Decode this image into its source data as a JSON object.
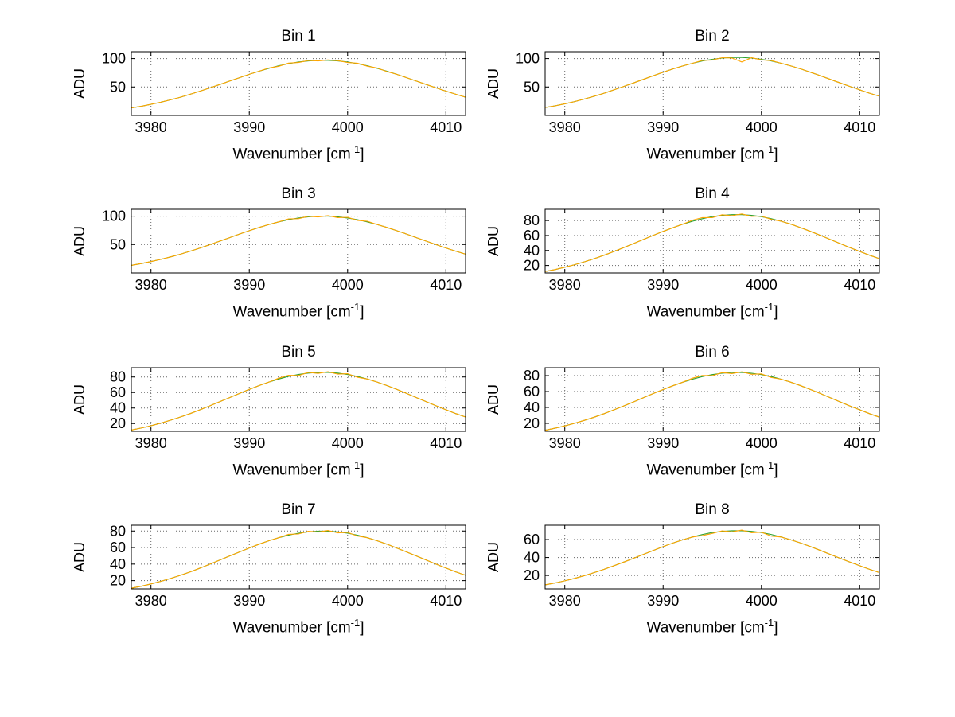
{
  "figure": {
    "background": "#ffffff"
  },
  "chart_common": {
    "type": "line",
    "xlabel_main": "Wavenumber [cm",
    "xlabel_sup": "-1",
    "xlabel_close": "]",
    "ylabel": "ADU",
    "xlim": [
      3978,
      4012
    ],
    "xticks": [
      3980,
      3990,
      4000,
      4010
    ],
    "grid": "dotted",
    "legend": "none",
    "colors": {
      "trace_primary": "#ffa500",
      "trace_secondary": "#2ca02c",
      "axis": "#000000",
      "grid": "#666666"
    },
    "x": [
      3978,
      3979,
      3980,
      3981,
      3982,
      3983,
      3984,
      3985,
      3986,
      3987,
      3988,
      3989,
      3990,
      3991,
      3992,
      3993,
      3994,
      3995,
      3996,
      3997,
      3998,
      3999,
      4000,
      4001,
      4002,
      4003,
      4004,
      4005,
      4006,
      4007,
      4008,
      4009,
      4010,
      4011,
      4012
    ]
  },
  "chart_data": [
    {
      "title": "Bin 1",
      "ylim": [
        0,
        112
      ],
      "yticks": [
        50,
        100
      ],
      "series": [
        {
          "name": "series-1",
          "color": "#2ca02c",
          "values": [
            13.1,
            16.0,
            19.4,
            23.2,
            27.5,
            32.1,
            37.2,
            42.7,
            48.4,
            54.3,
            60.3,
            66.3,
            72.2,
            77.7,
            82.7,
            87.2,
            91.0,
            93.9,
            95.8,
            96.9,
            96.9,
            95.8,
            93.9,
            91.0,
            87.2,
            82.7,
            77.7,
            72.2,
            66.3,
            60.3,
            54.3,
            48.4,
            42.7,
            37.2,
            32.1
          ]
        },
        {
          "name": "series-2",
          "color": "#ffa500",
          "values": [
            13.1,
            16.0,
            19.4,
            23.2,
            27.5,
            32.1,
            37.2,
            42.7,
            48.4,
            54.3,
            60.3,
            66.3,
            72.2,
            77.7,
            83.5,
            86.4,
            92.0,
            93.0,
            96.6,
            95.8,
            97.6,
            96.3,
            93.0,
            91.8,
            86.5,
            83.4,
            77.0,
            72.2,
            66.3,
            60.3,
            54.3,
            48.4,
            42.7,
            37.2,
            32.1
          ]
        }
      ]
    },
    {
      "title": "Bin 2",
      "ylim": [
        0,
        112
      ],
      "yticks": [
        50,
        100
      ],
      "series": [
        {
          "name": "series-1",
          "color": "#2ca02c",
          "values": [
            13.8,
            16.8,
            20.4,
            24.4,
            28.9,
            33.8,
            39.1,
            44.9,
            50.9,
            57.1,
            63.4,
            69.8,
            75.9,
            81.7,
            87.0,
            91.7,
            95.7,
            98.7,
            100.8,
            101.9,
            101.9,
            100.8,
            98.7,
            95.7,
            91.7,
            87.0,
            81.7,
            75.9,
            69.8,
            63.4,
            57.1,
            50.9,
            44.9,
            39.1,
            33.8
          ]
        },
        {
          "name": "series-2",
          "color": "#ffa500",
          "values": [
            13.8,
            16.8,
            20.4,
            24.4,
            28.9,
            33.8,
            39.1,
            44.9,
            50.9,
            57.1,
            63.4,
            69.8,
            75.9,
            81.7,
            87.0,
            91.7,
            96.8,
            97.5,
            101.5,
            100.9,
            94.0,
            101.5,
            97.6,
            96.4,
            91.7,
            87.0,
            81.7,
            75.9,
            69.8,
            63.4,
            57.1,
            50.9,
            44.9,
            39.1,
            33.8
          ]
        }
      ]
    },
    {
      "title": "Bin 3",
      "ylim": [
        0,
        112
      ],
      "yticks": [
        50,
        100
      ],
      "series": [
        {
          "name": "series-1",
          "color": "#2ca02c",
          "values": [
            13.5,
            16.5,
            20.0,
            23.9,
            28.3,
            33.1,
            38.3,
            44.0,
            49.9,
            56.0,
            62.2,
            68.4,
            74.4,
            80.1,
            85.3,
            89.9,
            93.8,
            96.8,
            98.8,
            99.9,
            99.9,
            98.8,
            96.8,
            93.8,
            89.9,
            85.3,
            80.1,
            74.4,
            68.4,
            62.2,
            56.0,
            49.9,
            44.0,
            38.3,
            33.1
          ]
        },
        {
          "name": "series-2",
          "color": "#ffa500",
          "values": [
            13.5,
            16.5,
            20.0,
            23.9,
            28.3,
            33.1,
            38.3,
            44.0,
            49.9,
            56.0,
            62.2,
            68.4,
            74.4,
            80.1,
            85.3,
            89.9,
            95.2,
            95.5,
            99.8,
            98.5,
            101.0,
            97.5,
            98.0,
            92.5,
            91.0,
            85.3,
            80.1,
            74.4,
            68.4,
            62.2,
            56.0,
            49.9,
            44.0,
            38.3,
            33.1
          ]
        }
      ]
    },
    {
      "title": "Bin 4",
      "ylim": [
        10,
        95
      ],
      "yticks": [
        20,
        40,
        60,
        80
      ],
      "series": [
        {
          "name": "series-1",
          "color": "#2ca02c",
          "values": [
            11.9,
            14.5,
            17.6,
            21.0,
            24.9,
            29.1,
            33.7,
            38.7,
            43.9,
            49.3,
            54.7,
            60.2,
            65.5,
            70.5,
            75.1,
            79.1,
            82.5,
            85.2,
            86.9,
            87.9,
            87.9,
            86.9,
            85.2,
            82.5,
            79.1,
            75.1,
            70.5,
            65.5,
            60.2,
            54.7,
            49.3,
            43.9,
            38.7,
            33.7,
            29.1
          ]
        },
        {
          "name": "series-2",
          "color": "#ffa500",
          "values": [
            11.9,
            14.5,
            17.6,
            21.0,
            24.9,
            29.1,
            33.7,
            38.7,
            43.9,
            49.3,
            54.7,
            60.2,
            65.5,
            70.5,
            75.1,
            80.5,
            84.0,
            83.8,
            87.8,
            86.5,
            88.8,
            85.6,
            86.0,
            81.5,
            79.1,
            75.1,
            70.5,
            65.5,
            60.2,
            54.7,
            49.3,
            43.9,
            38.7,
            33.7,
            29.1
          ]
        }
      ]
    },
    {
      "title": "Bin 5",
      "ylim": [
        10,
        92
      ],
      "yticks": [
        20,
        40,
        60,
        80
      ],
      "series": [
        {
          "name": "series-1",
          "color": "#2ca02c",
          "values": [
            11.6,
            14.2,
            17.2,
            20.6,
            24.3,
            28.5,
            32.9,
            37.8,
            42.9,
            48.2,
            53.5,
            58.8,
            64.0,
            68.9,
            73.4,
            77.3,
            80.7,
            83.2,
            85.0,
            85.9,
            85.9,
            85.0,
            83.2,
            80.7,
            77.3,
            73.4,
            68.9,
            64.0,
            58.8,
            53.5,
            48.2,
            42.9,
            37.8,
            32.9,
            28.5
          ]
        },
        {
          "name": "series-2",
          "color": "#ffa500",
          "values": [
            11.6,
            14.2,
            17.2,
            20.6,
            24.3,
            28.5,
            32.9,
            37.8,
            42.9,
            48.2,
            53.5,
            58.8,
            64.0,
            68.9,
            73.4,
            78.5,
            82.2,
            81.9,
            85.8,
            84.6,
            86.8,
            83.7,
            84.2,
            79.6,
            77.3,
            73.4,
            68.9,
            64.0,
            58.8,
            53.5,
            48.2,
            42.9,
            37.8,
            32.9,
            28.5
          ]
        }
      ]
    },
    {
      "title": "Bin 6",
      "ylim": [
        10,
        90
      ],
      "yticks": [
        20,
        40,
        60,
        80
      ],
      "series": [
        {
          "name": "series-1",
          "color": "#2ca02c",
          "values": [
            11.3,
            13.9,
            16.8,
            20.1,
            23.8,
            27.8,
            32.2,
            37.0,
            41.9,
            47.0,
            52.2,
            57.5,
            62.5,
            67.3,
            71.7,
            75.5,
            78.8,
            81.3,
            83.0,
            83.9,
            83.9,
            83.0,
            81.3,
            78.8,
            75.5,
            71.7,
            67.3,
            62.5,
            57.5,
            52.2,
            47.0,
            41.9,
            37.0,
            32.2,
            27.8
          ]
        },
        {
          "name": "series-2",
          "color": "#ffa500",
          "values": [
            11.3,
            13.9,
            16.8,
            20.1,
            23.8,
            27.8,
            32.2,
            37.0,
            41.9,
            47.0,
            52.2,
            57.5,
            62.5,
            67.3,
            71.7,
            76.8,
            80.2,
            79.9,
            83.8,
            82.6,
            84.8,
            81.7,
            82.2,
            77.6,
            75.5,
            71.7,
            67.3,
            62.5,
            57.5,
            52.2,
            47.0,
            41.9,
            37.0,
            32.2,
            27.8
          ]
        }
      ]
    },
    {
      "title": "Bin 7",
      "ylim": [
        10,
        87
      ],
      "yticks": [
        20,
        40,
        60,
        80
      ],
      "series": [
        {
          "name": "series-1",
          "color": "#2ca02c",
          "values": [
            10.8,
            13.2,
            16.0,
            19.1,
            22.6,
            26.5,
            30.6,
            35.2,
            39.9,
            44.8,
            49.8,
            54.7,
            59.5,
            64.1,
            68.2,
            71.9,
            75.0,
            77.4,
            79.0,
            79.9,
            79.9,
            79.0,
            77.4,
            75.0,
            71.9,
            68.2,
            64.1,
            59.5,
            54.7,
            49.8,
            44.8,
            39.9,
            35.2,
            30.6,
            26.5
          ]
        },
        {
          "name": "series-2",
          "color": "#ffa500",
          "values": [
            10.8,
            13.2,
            16.0,
            19.1,
            22.6,
            26.5,
            30.6,
            35.2,
            39.9,
            44.8,
            49.8,
            54.7,
            59.5,
            64.1,
            68.2,
            71.9,
            76.0,
            76.4,
            79.8,
            78.7,
            80.6,
            77.8,
            78.3,
            73.9,
            71.9,
            68.2,
            64.1,
            59.5,
            54.7,
            49.8,
            44.8,
            39.9,
            35.2,
            30.6,
            26.5
          ]
        }
      ]
    },
    {
      "title": "Bin 8",
      "ylim": [
        5,
        76
      ],
      "yticks": [
        20,
        40,
        60
      ],
      "series": [
        {
          "name": "series-1",
          "color": "#2ca02c",
          "values": [
            9.5,
            11.6,
            14.0,
            16.7,
            19.8,
            23.2,
            26.8,
            30.8,
            34.9,
            39.2,
            43.5,
            47.9,
            52.1,
            56.1,
            59.7,
            62.9,
            65.7,
            67.8,
            69.2,
            69.9,
            69.9,
            69.2,
            67.8,
            65.7,
            62.9,
            59.7,
            56.1,
            52.1,
            47.9,
            43.5,
            39.2,
            34.9,
            30.8,
            26.8,
            23.2
          ]
        },
        {
          "name": "series-2",
          "color": "#ffa500",
          "values": [
            9.5,
            11.6,
            14.0,
            16.7,
            19.8,
            23.2,
            26.8,
            30.8,
            34.9,
            39.2,
            43.5,
            47.9,
            52.1,
            56.1,
            59.7,
            62.9,
            64.5,
            66.8,
            69.8,
            68.6,
            70.6,
            67.7,
            68.3,
            63.8,
            62.9,
            59.7,
            56.1,
            52.1,
            47.9,
            43.5,
            39.2,
            34.9,
            30.8,
            26.8,
            23.2
          ]
        }
      ]
    }
  ]
}
